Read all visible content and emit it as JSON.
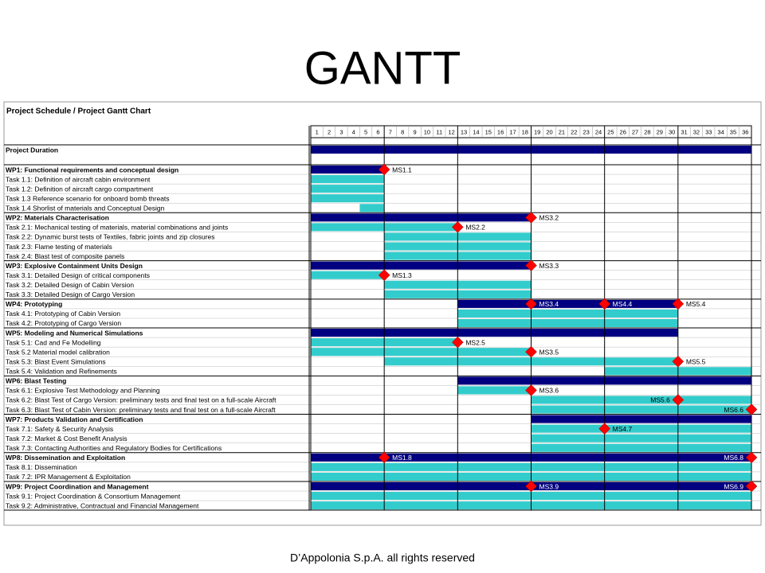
{
  "chart_data": {
    "type": "gantt",
    "title": "GANTT",
    "subtitle": "Project Schedule / Project Gantt Chart",
    "footer": "D’Appolonia S.p.A. all rights reserved",
    "months": [
      1,
      2,
      3,
      4,
      5,
      6,
      7,
      8,
      9,
      10,
      11,
      12,
      13,
      14,
      15,
      16,
      17,
      18,
      19,
      20,
      21,
      22,
      23,
      24,
      25,
      26,
      27,
      28,
      29,
      30,
      31,
      32,
      33,
      34,
      35,
      36
    ],
    "wp_color": "#000080",
    "task_color": "#33cccc",
    "milestone_color": "#ff0000",
    "rows": [
      {
        "label": "Project Duration",
        "kind": "duration",
        "bars": [
          [
            1,
            36
          ]
        ],
        "milestones": []
      },
      {
        "label": "WP1: Functional requirements and conceptual design",
        "kind": "wp",
        "bars": [
          [
            1,
            6
          ]
        ],
        "milestones": [
          {
            "label": "MS1.1",
            "month": 6
          }
        ]
      },
      {
        "label": "Task 1.1: Definition of aircraft cabin environment",
        "kind": "task",
        "bars": [
          [
            1,
            6
          ]
        ],
        "milestones": []
      },
      {
        "label": "Task 1.2: Definition of aircraft cargo compartment",
        "kind": "task",
        "bars": [
          [
            1,
            6
          ]
        ],
        "milestones": []
      },
      {
        "label": "Task 1.3 Reference scenario for onboard bomb threats",
        "kind": "task",
        "bars": [
          [
            1,
            6
          ]
        ],
        "milestones": []
      },
      {
        "label": "Task 1.4 Shorlist of materials and Conceptual Design",
        "kind": "task",
        "bars": [
          [
            5,
            6
          ]
        ],
        "milestones": []
      },
      {
        "label": "WP2: Materials Characterisation",
        "kind": "wp",
        "bars": [
          [
            1,
            18
          ]
        ],
        "milestones": [
          {
            "label": "MS3.2",
            "month": 18
          }
        ]
      },
      {
        "label": "Task 2.1: Mechanical testing of materials, material combinations and joints",
        "kind": "task",
        "bars": [
          [
            1,
            12
          ]
        ],
        "milestones": [
          {
            "label": "MS2.2",
            "month": 12
          }
        ]
      },
      {
        "label": "Task 2.2: Dynamic burst tests of Textiles, fabric joints and zip closures",
        "kind": "task",
        "bars": [
          [
            7,
            18
          ]
        ],
        "milestones": []
      },
      {
        "label": "Task 2.3: Flame testing of materials",
        "kind": "task",
        "bars": [
          [
            7,
            18
          ]
        ],
        "milestones": []
      },
      {
        "label": "Task 2.4: Blast test of composite panels",
        "kind": "task",
        "bars": [
          [
            7,
            18
          ]
        ],
        "milestones": []
      },
      {
        "label": "WP3: Explosive Containment Units Design",
        "kind": "wp",
        "bars": [
          [
            1,
            18
          ]
        ],
        "milestones": [
          {
            "label": "MS3.3",
            "month": 18
          }
        ]
      },
      {
        "label": "Task 3.1: Detailed Design of critical components",
        "kind": "task",
        "bars": [
          [
            1,
            6
          ]
        ],
        "milestones": [
          {
            "label": "MS1.3",
            "month": 6
          }
        ]
      },
      {
        "label": "Task 3.2: Detailed Design of Cabin Version",
        "kind": "task",
        "bars": [
          [
            7,
            18
          ]
        ],
        "milestones": []
      },
      {
        "label": "Task 3.3: Detailed Design of Cargo Version",
        "kind": "task",
        "bars": [
          [
            7,
            18
          ]
        ],
        "milestones": []
      },
      {
        "label": "WP4: Prototyping",
        "kind": "wp",
        "bars": [
          [
            13,
            30
          ]
        ],
        "milestones": [
          {
            "label": "MS3.4",
            "month": 18
          },
          {
            "label": "MS4.4",
            "month": 24
          },
          {
            "label": "MS5.4",
            "month": 30
          }
        ]
      },
      {
        "label": "Task 4.1: Prototyping of Cabin Version",
        "kind": "task",
        "bars": [
          [
            13,
            30
          ]
        ],
        "milestones": []
      },
      {
        "label": "Task 4.2: Prototyping of Cargo Version",
        "kind": "task",
        "bars": [
          [
            13,
            30
          ]
        ],
        "milestones": []
      },
      {
        "label": "WP5: Modeling and Numerical Simulations",
        "kind": "wp",
        "bars": [
          [
            1,
            30
          ]
        ],
        "milestones": []
      },
      {
        "label": "Task 5.1: Cad and Fe Modelling",
        "kind": "task",
        "bars": [
          [
            1,
            12
          ]
        ],
        "milestones": [
          {
            "label": "MS2.5",
            "month": 12
          }
        ]
      },
      {
        "label": "Task 5.2 Material model calibration",
        "kind": "task",
        "bars": [
          [
            1,
            18
          ]
        ],
        "milestones": [
          {
            "label": "MS3.5",
            "month": 18
          }
        ]
      },
      {
        "label": "Task 5.3: Blast Event Simulations",
        "kind": "task",
        "bars": [
          [
            7,
            30
          ]
        ],
        "milestones": [
          {
            "label": "MS5.5",
            "month": 30
          }
        ]
      },
      {
        "label": "Task 5.4: Validation and Refinements",
        "kind": "task",
        "bars": [
          [
            25,
            36
          ]
        ],
        "milestones": []
      },
      {
        "label": "WP6: Blast Testing",
        "kind": "wp",
        "bars": [
          [
            13,
            36
          ]
        ],
        "milestones": []
      },
      {
        "label": "Task 6.1: Explosive Test Methodology and Planning",
        "kind": "task",
        "bars": [
          [
            13,
            18
          ]
        ],
        "milestones": [
          {
            "label": "MS3.6",
            "month": 18
          }
        ]
      },
      {
        "label": "Task 6.2: Blast Test of Cargo Version: preliminary tests and final test on a full-scale Aircraft",
        "kind": "task",
        "bars": [
          [
            19,
            36
          ]
        ],
        "milestones": [
          {
            "label": "MS5.6",
            "month": 30
          }
        ]
      },
      {
        "label": "Task 6.3: Blast Test of Cabin Version: preliminary tests and final test on a full-scale Aircraft",
        "kind": "task",
        "bars": [
          [
            19,
            36
          ]
        ],
        "milestones": [
          {
            "label": "MS6.6",
            "month": 36
          }
        ]
      },
      {
        "label": "WP7: Products Validation and Certification",
        "kind": "wp",
        "bars": [
          [
            19,
            36
          ]
        ],
        "milestones": []
      },
      {
        "label": "Task 7.1: Safety & Security Analysis",
        "kind": "task",
        "bars": [
          [
            19,
            36
          ]
        ],
        "milestones": [
          {
            "label": "MS4.7",
            "month": 24
          }
        ]
      },
      {
        "label": "Task 7.2: Market & Cost Benefit Analysis",
        "kind": "task",
        "bars": [
          [
            19,
            36
          ]
        ],
        "milestones": []
      },
      {
        "label": "Task 7.3: Contacting Authorities and Regulatory Bodies for Certifications",
        "kind": "task",
        "bars": [
          [
            19,
            36
          ]
        ],
        "milestones": []
      },
      {
        "label": "WP8: Dissemination and Exploitation",
        "kind": "wp",
        "bars": [
          [
            1,
            36
          ]
        ],
        "milestones": [
          {
            "label": "MS1.8",
            "month": 6
          },
          {
            "label": "MS6.8",
            "month": 36
          }
        ]
      },
      {
        "label": "Task 8.1: Dissemination",
        "kind": "task",
        "bars": [
          [
            1,
            36
          ]
        ],
        "milestones": []
      },
      {
        "label": "Task 7.2: IPR Management & Exploitation",
        "kind": "task",
        "bars": [
          [
            1,
            36
          ]
        ],
        "milestones": []
      },
      {
        "label": "WP9: Project Coordination and Management",
        "kind": "wp",
        "bars": [
          [
            1,
            36
          ]
        ],
        "milestones": [
          {
            "label": "MS3.9",
            "month": 18
          },
          {
            "label": "MS6.9",
            "month": 36
          }
        ]
      },
      {
        "label": "Task 9.1: Project Coordination & Consortium Management",
        "kind": "task",
        "bars": [
          [
            1,
            36
          ]
        ],
        "milestones": []
      },
      {
        "label": "Task 9.2: Administrative, Contractual and Financial Management",
        "kind": "task",
        "bars": [
          [
            1,
            36
          ]
        ],
        "milestones": []
      }
    ]
  }
}
